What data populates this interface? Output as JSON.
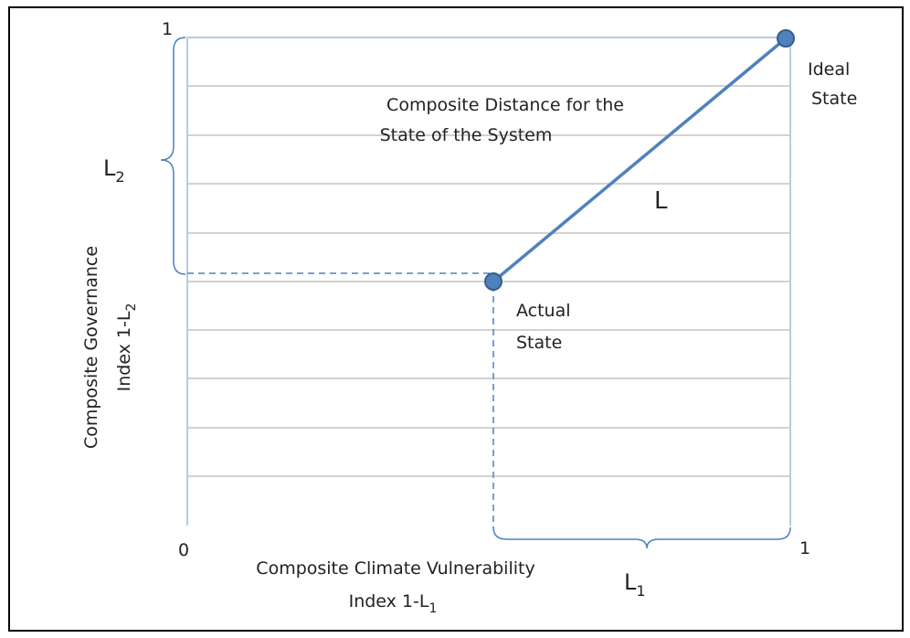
{
  "diagram": {
    "ticks": {
      "origin": "0",
      "x_max": "1",
      "y_max": "1"
    },
    "y_axis_label": {
      "line1": "Composite Governance",
      "line2": "Index 1-L",
      "line2_sub": "2"
    },
    "x_axis_label": {
      "line1": "Composite Climate Vulnerability",
      "line2": "Index 1-L",
      "line2_sub": "1"
    },
    "distance_title": [
      "Composite Distance for the",
      "State of the System"
    ],
    "ideal_state": [
      "Ideal",
      "State"
    ],
    "actual_state": [
      "Actual",
      "State"
    ],
    "distance_label": "L",
    "brace_x": {
      "base": "L",
      "sub": "1"
    },
    "brace_y": {
      "base": "L",
      "sub": "2"
    }
  }
}
